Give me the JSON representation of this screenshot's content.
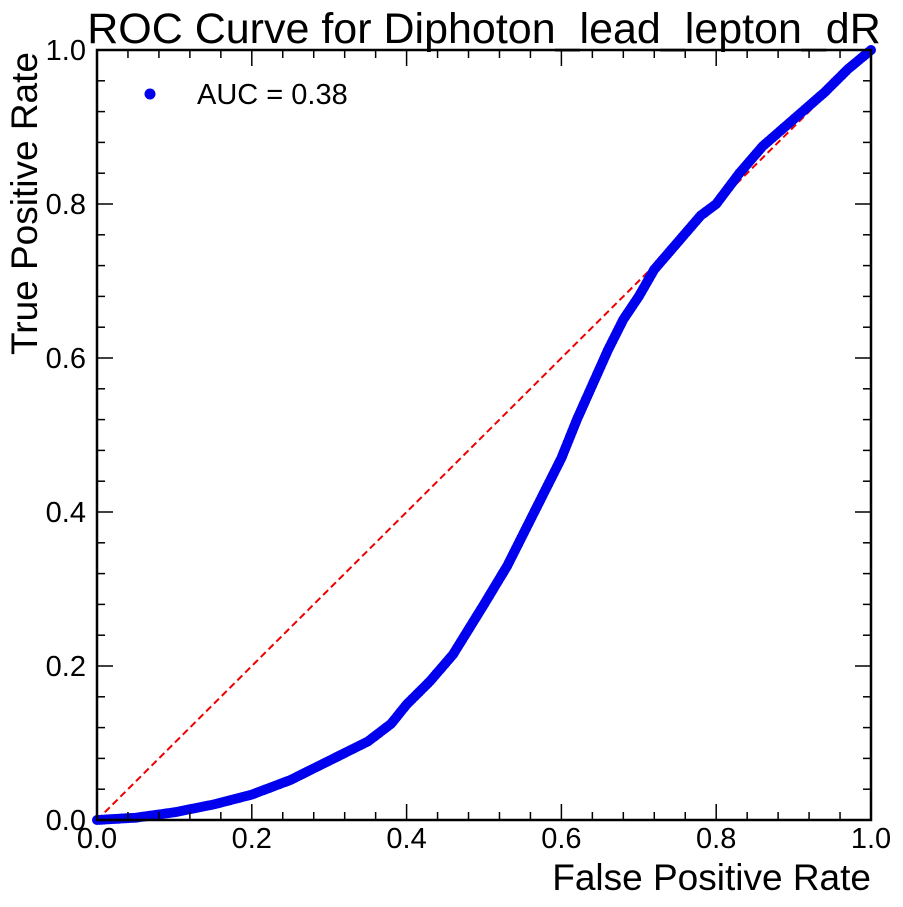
{
  "chart_data": {
    "type": "scatter",
    "title": "ROC Curve for Diphoton_lead_lepton_dR",
    "xlabel": "False Positive Rate",
    "ylabel": "True Positive Rate",
    "xlim": [
      0.0,
      1.0
    ],
    "ylim": [
      0.0,
      1.0
    ],
    "xticks": [
      "0.0",
      "0.2",
      "0.4",
      "0.6",
      "0.8",
      "1.0"
    ],
    "yticks": [
      "0.0",
      "0.2",
      "0.4",
      "0.6",
      "0.8",
      "1.0"
    ],
    "grid": false,
    "legend_position": "top-left",
    "series": [
      {
        "name": "AUC = 0.38",
        "color": "#0000ee",
        "marker": "circle",
        "x": [
          0.0,
          0.05,
          0.1,
          0.15,
          0.2,
          0.25,
          0.3,
          0.35,
          0.38,
          0.4,
          0.43,
          0.46,
          0.5,
          0.53,
          0.56,
          0.58,
          0.6,
          0.62,
          0.64,
          0.66,
          0.68,
          0.7,
          0.72,
          0.75,
          0.78,
          0.8,
          0.83,
          0.86,
          0.9,
          0.94,
          0.97,
          1.0
        ],
        "y": [
          0.0,
          0.003,
          0.01,
          0.02,
          0.033,
          0.052,
          0.077,
          0.102,
          0.125,
          0.15,
          0.18,
          0.215,
          0.28,
          0.33,
          0.39,
          0.43,
          0.47,
          0.52,
          0.565,
          0.61,
          0.65,
          0.68,
          0.715,
          0.75,
          0.785,
          0.8,
          0.84,
          0.875,
          0.91,
          0.945,
          0.975,
          1.0
        ]
      },
      {
        "name": "",
        "color": "#ee0000",
        "style": "dashed",
        "x": [
          0.0,
          1.0
        ],
        "y": [
          0.0,
          1.0
        ]
      }
    ]
  }
}
